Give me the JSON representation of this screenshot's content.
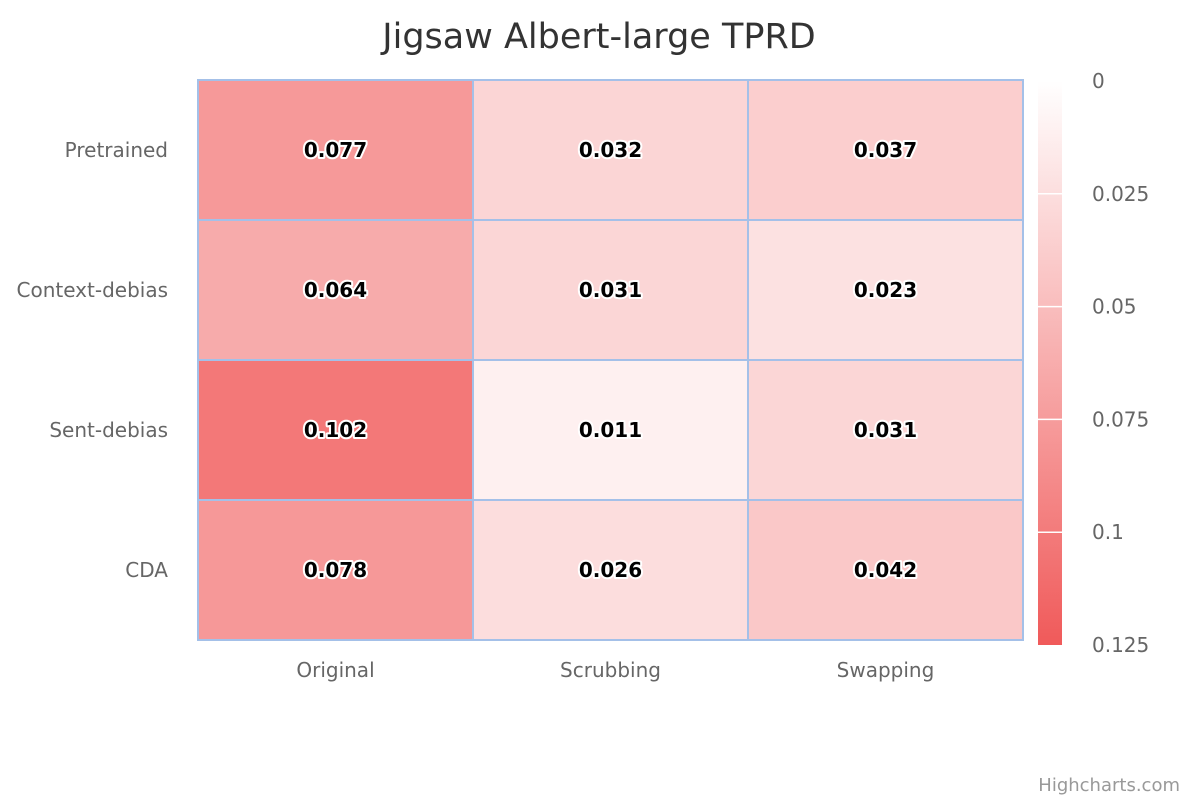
{
  "chart_data": {
    "type": "heatmap",
    "title": "Jigsaw Albert-large TPRD",
    "x_categories": [
      "Original",
      "Scrubbing",
      "Swapping"
    ],
    "y_categories": [
      "Pretrained",
      "Context-debias",
      "Sent-debias",
      "CDA"
    ],
    "values": [
      [
        0.077,
        0.032,
        0.037
      ],
      [
        0.064,
        0.031,
        0.023
      ],
      [
        0.102,
        0.011,
        0.031
      ],
      [
        0.078,
        0.026,
        0.042
      ]
    ],
    "color_axis": {
      "min": 0,
      "max": 0.125,
      "min_color": "#ffffff",
      "max_color": "#f05a5a",
      "tick_labels": [
        "0",
        "0.025",
        "0.05",
        "0.075",
        "0.1",
        "0.125"
      ],
      "placement": "right"
    },
    "cell_border_color": "#a4c0e8",
    "grid": false
  },
  "credits": "Highcharts.com"
}
